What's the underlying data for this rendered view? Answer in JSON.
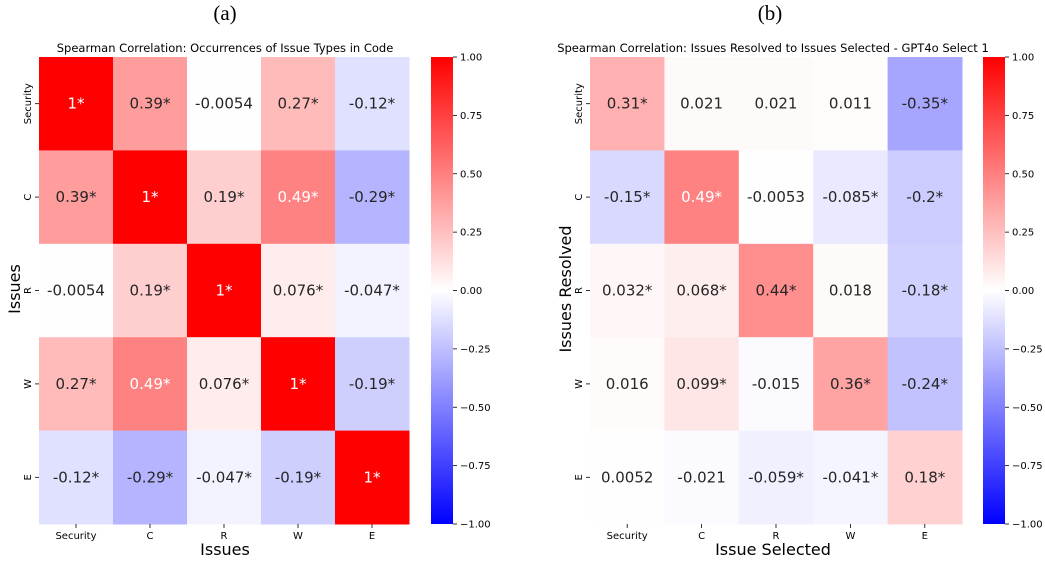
{
  "chart_data": [
    {
      "type": "heatmap",
      "panel_label": "(a)",
      "title": "Spearman Correlation: Occurrences of Issue Types in Code",
      "xlabel": "Issues",
      "ylabel": "Issues",
      "x_categories": [
        "Security",
        "C",
        "R",
        "W",
        "E"
      ],
      "y_categories": [
        "Security",
        "C",
        "R",
        "W",
        "E"
      ],
      "values": [
        [
          1,
          0.39,
          -0.0054,
          0.27,
          -0.12
        ],
        [
          0.39,
          1,
          0.19,
          0.49,
          -0.29
        ],
        [
          -0.0054,
          0.19,
          1,
          0.076,
          -0.047
        ],
        [
          0.27,
          0.49,
          0.076,
          1,
          -0.19
        ],
        [
          -0.12,
          -0.29,
          -0.047,
          -0.19,
          1
        ]
      ],
      "labels": [
        [
          "1*",
          "0.39*",
          "-0.0054",
          "0.27*",
          "-0.12*"
        ],
        [
          "0.39*",
          "1*",
          "0.19*",
          "0.49*",
          "-0.29*"
        ],
        [
          "-0.0054",
          "0.19*",
          "1*",
          "0.076*",
          "-0.047*"
        ],
        [
          "0.27*",
          "0.49*",
          "0.076*",
          "1*",
          "-0.19*"
        ],
        [
          "-0.12*",
          "-0.29*",
          "-0.047*",
          "-0.19*",
          "1*"
        ]
      ],
      "colormap": "bwr",
      "vmin": -1,
      "vmax": 1,
      "colorbar_ticks": [
        "1.00",
        "0.75",
        "0.50",
        "0.25",
        "0.00",
        "−0.25",
        "−0.50",
        "−0.75",
        "−1.00"
      ]
    },
    {
      "type": "heatmap",
      "panel_label": "(b)",
      "title": "Spearman Correlation: Issues Resolved to Issues Selected - GPT4o Select 1",
      "xlabel": "Issue Selected",
      "ylabel": "Issues Resolved",
      "x_categories": [
        "Security",
        "C",
        "R",
        "W",
        "E"
      ],
      "y_categories": [
        "Security",
        "C",
        "R",
        "W",
        "E"
      ],
      "values": [
        [
          0.31,
          0.021,
          0.021,
          0.011,
          -0.35
        ],
        [
          -0.15,
          0.49,
          -0.0053,
          -0.085,
          -0.2
        ],
        [
          0.032,
          0.068,
          0.44,
          0.018,
          -0.18
        ],
        [
          0.016,
          0.099,
          -0.015,
          0.36,
          -0.24
        ],
        [
          0.0052,
          -0.021,
          -0.059,
          -0.041,
          0.18
        ]
      ],
      "labels": [
        [
          "0.31*",
          "0.021",
          "0.021",
          "0.011",
          "-0.35*"
        ],
        [
          "-0.15*",
          "0.49*",
          "-0.0053",
          "-0.085*",
          "-0.2*"
        ],
        [
          "0.032*",
          "0.068*",
          "0.44*",
          "0.018",
          "-0.18*"
        ],
        [
          "0.016",
          "0.099*",
          "-0.015",
          "0.36*",
          "-0.24*"
        ],
        [
          "0.0052",
          "-0.021",
          "-0.059*",
          "-0.041*",
          "0.18*"
        ]
      ],
      "colormap": "bwr",
      "vmin": -1,
      "vmax": 1,
      "colorbar_ticks": [
        "1.00",
        "0.75",
        "0.50",
        "0.25",
        "0.00",
        "−0.25",
        "−0.50",
        "−0.75",
        "−1.00"
      ]
    }
  ]
}
